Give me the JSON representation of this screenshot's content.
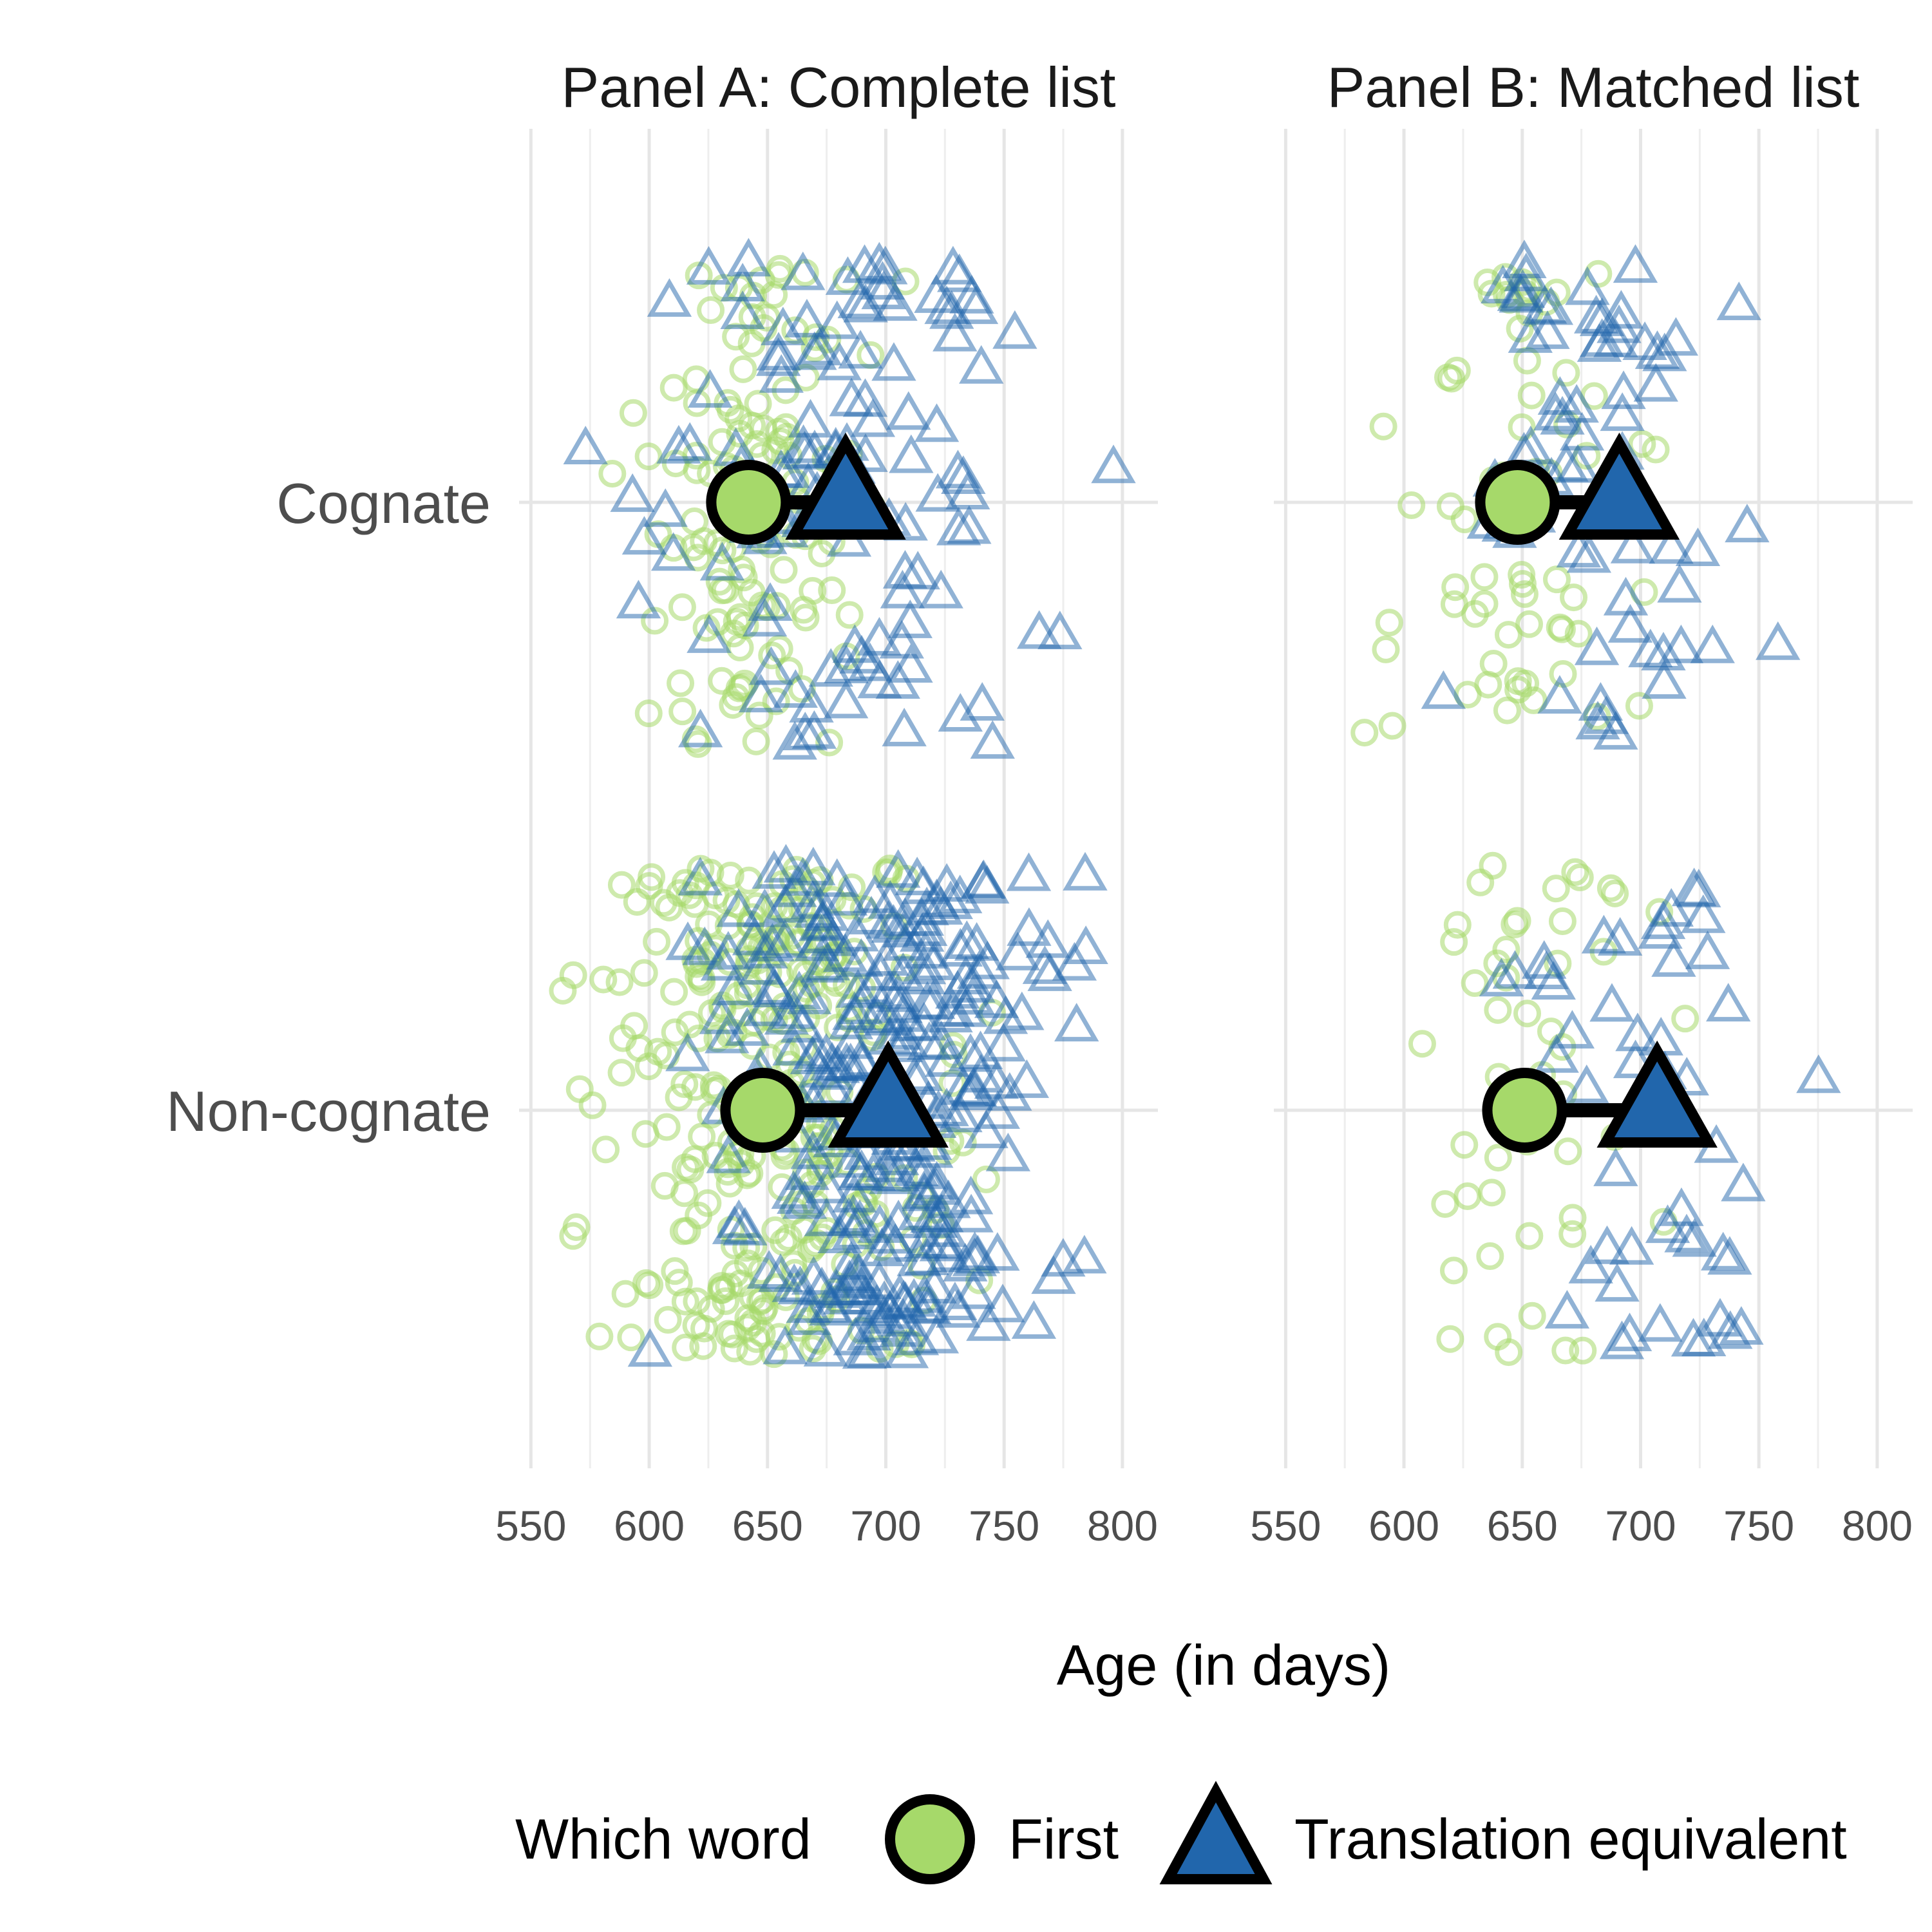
{
  "chart_data": {
    "type": "scatter",
    "xlabel": "Age (in days)",
    "x_ticks": [
      550,
      600,
      650,
      700,
      750,
      800
    ],
    "xlim": [
      545,
      815
    ],
    "categories": [
      "Cognate",
      "Non-cognate"
    ],
    "legend": {
      "title": "Which word",
      "entries": [
        "First",
        "Translation equivalent"
      ],
      "placement": "bottom"
    },
    "colors": {
      "first": "#A6D96A",
      "translation": "#2166AC"
    },
    "grid": true,
    "panels": [
      {
        "title": "Panel A: Complete list",
        "series": [
          {
            "name": "First",
            "category": "Cognate",
            "mean": 642,
            "n": 120,
            "spread": 38
          },
          {
            "name": "Translation equivalent",
            "category": "Cognate",
            "mean": 683,
            "n": 120,
            "spread": 55
          },
          {
            "name": "First",
            "category": "Non-cognate",
            "mean": 648,
            "n": 300,
            "spread": 50
          },
          {
            "name": "Translation equivalent",
            "category": "Non-cognate",
            "mean": 701,
            "n": 300,
            "spread": 50
          }
        ]
      },
      {
        "title": "Panel B: Matched list",
        "series": [
          {
            "name": "First",
            "category": "Cognate",
            "mean": 648,
            "n": 65,
            "spread": 32
          },
          {
            "name": "Translation equivalent",
            "category": "Cognate",
            "mean": 691,
            "n": 65,
            "spread": 45
          },
          {
            "name": "First",
            "category": "Non-cognate",
            "mean": 651,
            "n": 50,
            "spread": 35
          },
          {
            "name": "Translation equivalent",
            "category": "Non-cognate",
            "mean": 707,
            "n": 50,
            "spread": 38
          }
        ]
      }
    ]
  }
}
